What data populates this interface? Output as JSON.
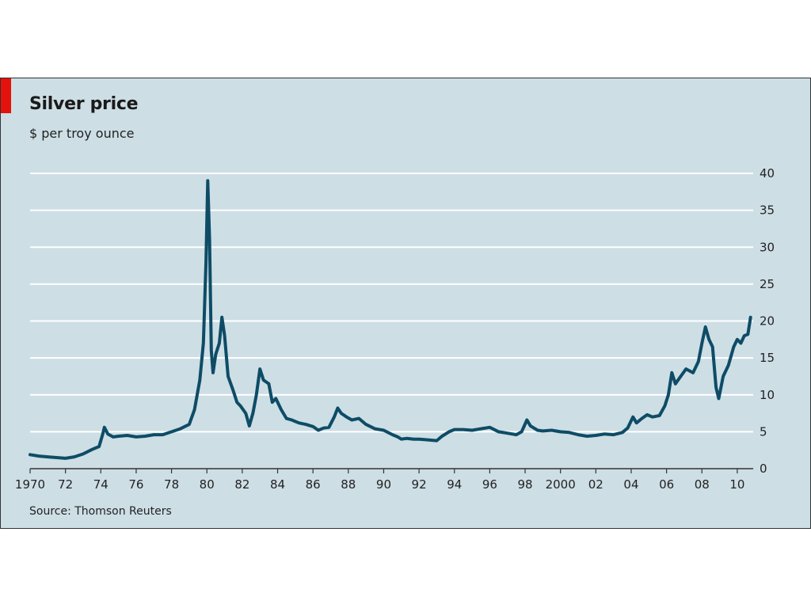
{
  "chart_data": {
    "type": "line",
    "title": "Silver price",
    "subtitle": "$ per troy ounce",
    "source": "Source: Thomson Reuters",
    "accent_color": "#e3120b",
    "background_color": "#cddee5",
    "line_color": "#0e4c66",
    "grid": true,
    "y_axis_position": "right",
    "ylim": [
      0,
      40
    ],
    "xlim": [
      1970,
      2010.9
    ],
    "y_ticks": [
      0,
      5,
      10,
      15,
      20,
      25,
      30,
      35,
      40
    ],
    "x_ticks": [
      {
        "value": 1970,
        "label": "1970"
      },
      {
        "value": 1972,
        "label": "72"
      },
      {
        "value": 1974,
        "label": "74"
      },
      {
        "value": 1976,
        "label": "76"
      },
      {
        "value": 1978,
        "label": "78"
      },
      {
        "value": 1980,
        "label": "80"
      },
      {
        "value": 1982,
        "label": "82"
      },
      {
        "value": 1984,
        "label": "84"
      },
      {
        "value": 1986,
        "label": "86"
      },
      {
        "value": 1988,
        "label": "88"
      },
      {
        "value": 1990,
        "label": "90"
      },
      {
        "value": 1992,
        "label": "92"
      },
      {
        "value": 1994,
        "label": "94"
      },
      {
        "value": 1996,
        "label": "96"
      },
      {
        "value": 1998,
        "label": "98"
      },
      {
        "value": 2000,
        "label": "2000"
      },
      {
        "value": 2002,
        "label": "02"
      },
      {
        "value": 2004,
        "label": "04"
      },
      {
        "value": 2006,
        "label": "06"
      },
      {
        "value": 2008,
        "label": "08"
      },
      {
        "value": 2010,
        "label": "10"
      }
    ],
    "series": [
      {
        "points": [
          [
            1970.0,
            1.9
          ],
          [
            1970.5,
            1.7
          ],
          [
            1971.0,
            1.6
          ],
          [
            1971.5,
            1.5
          ],
          [
            1972.0,
            1.4
          ],
          [
            1972.5,
            1.6
          ],
          [
            1973.0,
            2.0
          ],
          [
            1973.5,
            2.6
          ],
          [
            1973.9,
            3.0
          ],
          [
            1974.1,
            4.6
          ],
          [
            1974.2,
            5.6
          ],
          [
            1974.4,
            4.7
          ],
          [
            1974.7,
            4.3
          ],
          [
            1975.0,
            4.4
          ],
          [
            1975.5,
            4.5
          ],
          [
            1976.0,
            4.3
          ],
          [
            1976.5,
            4.4
          ],
          [
            1977.0,
            4.6
          ],
          [
            1977.5,
            4.6
          ],
          [
            1978.0,
            5.0
          ],
          [
            1978.5,
            5.4
          ],
          [
            1979.0,
            6.0
          ],
          [
            1979.3,
            8.0
          ],
          [
            1979.6,
            12.0
          ],
          [
            1979.8,
            17.0
          ],
          [
            1979.95,
            28.0
          ],
          [
            1980.05,
            39.0
          ],
          [
            1980.15,
            31.0
          ],
          [
            1980.25,
            16.0
          ],
          [
            1980.35,
            13.0
          ],
          [
            1980.5,
            15.5
          ],
          [
            1980.7,
            17.0
          ],
          [
            1980.85,
            20.5
          ],
          [
            1981.0,
            18.0
          ],
          [
            1981.2,
            12.5
          ],
          [
            1981.5,
            10.5
          ],
          [
            1981.7,
            9.0
          ],
          [
            1981.9,
            8.5
          ],
          [
            1982.2,
            7.5
          ],
          [
            1982.4,
            5.8
          ],
          [
            1982.6,
            7.5
          ],
          [
            1982.8,
            10.0
          ],
          [
            1983.0,
            13.5
          ],
          [
            1983.2,
            12.0
          ],
          [
            1983.5,
            11.5
          ],
          [
            1983.7,
            9.0
          ],
          [
            1983.9,
            9.5
          ],
          [
            1984.2,
            8.0
          ],
          [
            1984.5,
            6.8
          ],
          [
            1984.8,
            6.6
          ],
          [
            1985.2,
            6.2
          ],
          [
            1985.6,
            6.0
          ],
          [
            1986.0,
            5.7
          ],
          [
            1986.3,
            5.2
          ],
          [
            1986.6,
            5.5
          ],
          [
            1986.9,
            5.6
          ],
          [
            1987.2,
            7.0
          ],
          [
            1987.4,
            8.2
          ],
          [
            1987.6,
            7.5
          ],
          [
            1987.9,
            7.0
          ],
          [
            1988.2,
            6.6
          ],
          [
            1988.6,
            6.8
          ],
          [
            1989.0,
            6.0
          ],
          [
            1989.5,
            5.4
          ],
          [
            1990.0,
            5.2
          ],
          [
            1990.5,
            4.6
          ],
          [
            1990.8,
            4.3
          ],
          [
            1991.0,
            4.0
          ],
          [
            1991.3,
            4.1
          ],
          [
            1991.7,
            4.0
          ],
          [
            1992.0,
            4.0
          ],
          [
            1992.5,
            3.9
          ],
          [
            1993.0,
            3.8
          ],
          [
            1993.3,
            4.4
          ],
          [
            1993.7,
            5.0
          ],
          [
            1994.0,
            5.3
          ],
          [
            1994.5,
            5.3
          ],
          [
            1995.0,
            5.2
          ],
          [
            1995.5,
            5.4
          ],
          [
            1996.0,
            5.6
          ],
          [
            1996.5,
            5.0
          ],
          [
            1997.0,
            4.8
          ],
          [
            1997.5,
            4.6
          ],
          [
            1997.8,
            5.0
          ],
          [
            1998.1,
            6.6
          ],
          [
            1998.3,
            5.8
          ],
          [
            1998.7,
            5.2
          ],
          [
            1999.0,
            5.1
          ],
          [
            1999.5,
            5.2
          ],
          [
            2000.0,
            5.0
          ],
          [
            2000.5,
            4.9
          ],
          [
            2001.0,
            4.6
          ],
          [
            2001.5,
            4.4
          ],
          [
            2002.0,
            4.5
          ],
          [
            2002.5,
            4.7
          ],
          [
            2003.0,
            4.6
          ],
          [
            2003.5,
            4.9
          ],
          [
            2003.8,
            5.5
          ],
          [
            2004.1,
            7.0
          ],
          [
            2004.3,
            6.2
          ],
          [
            2004.6,
            6.8
          ],
          [
            2004.9,
            7.3
          ],
          [
            2005.2,
            7.0
          ],
          [
            2005.6,
            7.2
          ],
          [
            2005.9,
            8.5
          ],
          [
            2006.1,
            10.0
          ],
          [
            2006.3,
            13.0
          ],
          [
            2006.5,
            11.5
          ],
          [
            2006.8,
            12.5
          ],
          [
            2007.1,
            13.5
          ],
          [
            2007.5,
            13.0
          ],
          [
            2007.8,
            14.5
          ],
          [
            2008.0,
            17.0
          ],
          [
            2008.2,
            19.2
          ],
          [
            2008.4,
            17.5
          ],
          [
            2008.6,
            16.5
          ],
          [
            2008.8,
            11.0
          ],
          [
            2008.95,
            9.5
          ],
          [
            2009.2,
            12.5
          ],
          [
            2009.5,
            14.0
          ],
          [
            2009.8,
            16.5
          ],
          [
            2010.0,
            17.5
          ],
          [
            2010.2,
            17.0
          ],
          [
            2010.4,
            18.0
          ],
          [
            2010.6,
            18.2
          ],
          [
            2010.75,
            20.5
          ]
        ]
      }
    ]
  }
}
